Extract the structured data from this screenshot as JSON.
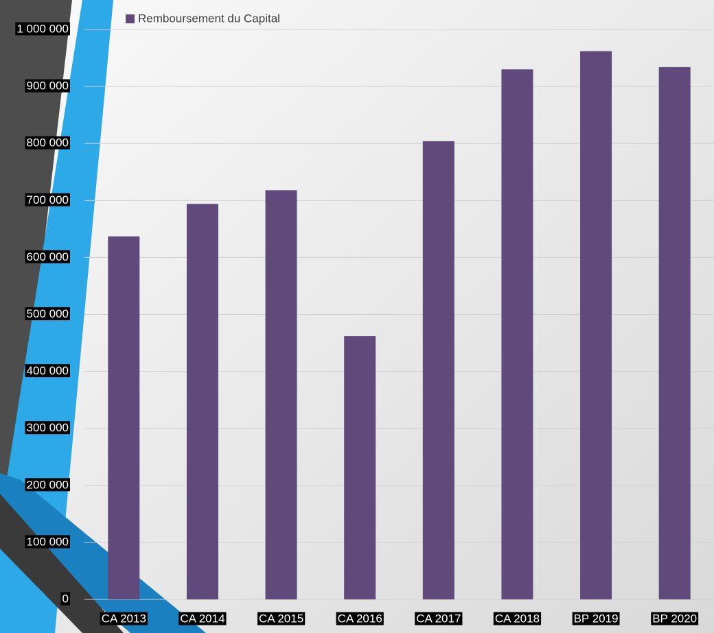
{
  "chart_data": {
    "type": "bar",
    "categories": [
      "CA 2013",
      "CA 2014",
      "CA 2015",
      "CA 2016",
      "CA 2017",
      "CA 2018",
      "BP 2019",
      "BP 2020"
    ],
    "series": [
      {
        "name": "Remboursement du Capital",
        "color": "#604a7b",
        "values": [
          637000,
          694000,
          718000,
          462000,
          804000,
          930000,
          962000,
          934000
        ]
      }
    ],
    "ylim": [
      0,
      1000000
    ],
    "yticks": [
      0,
      {
        "value": 100000,
        "label": "100 000"
      },
      {
        "value": 200000,
        "label": "200 000"
      },
      {
        "value": 300000,
        "label": "300 000"
      },
      {
        "value": 400000,
        "label": "400 000"
      },
      {
        "value": 500000,
        "label": "500 000"
      },
      {
        "value": 600000,
        "label": "600 000"
      },
      {
        "value": 700000,
        "label": "700 000"
      },
      {
        "value": 800000,
        "label": "800 000"
      },
      {
        "value": 900000,
        "label": "900 000"
      },
      {
        "value": 1000000,
        "label": "1 000 000"
      }
    ],
    "grid": true
  }
}
